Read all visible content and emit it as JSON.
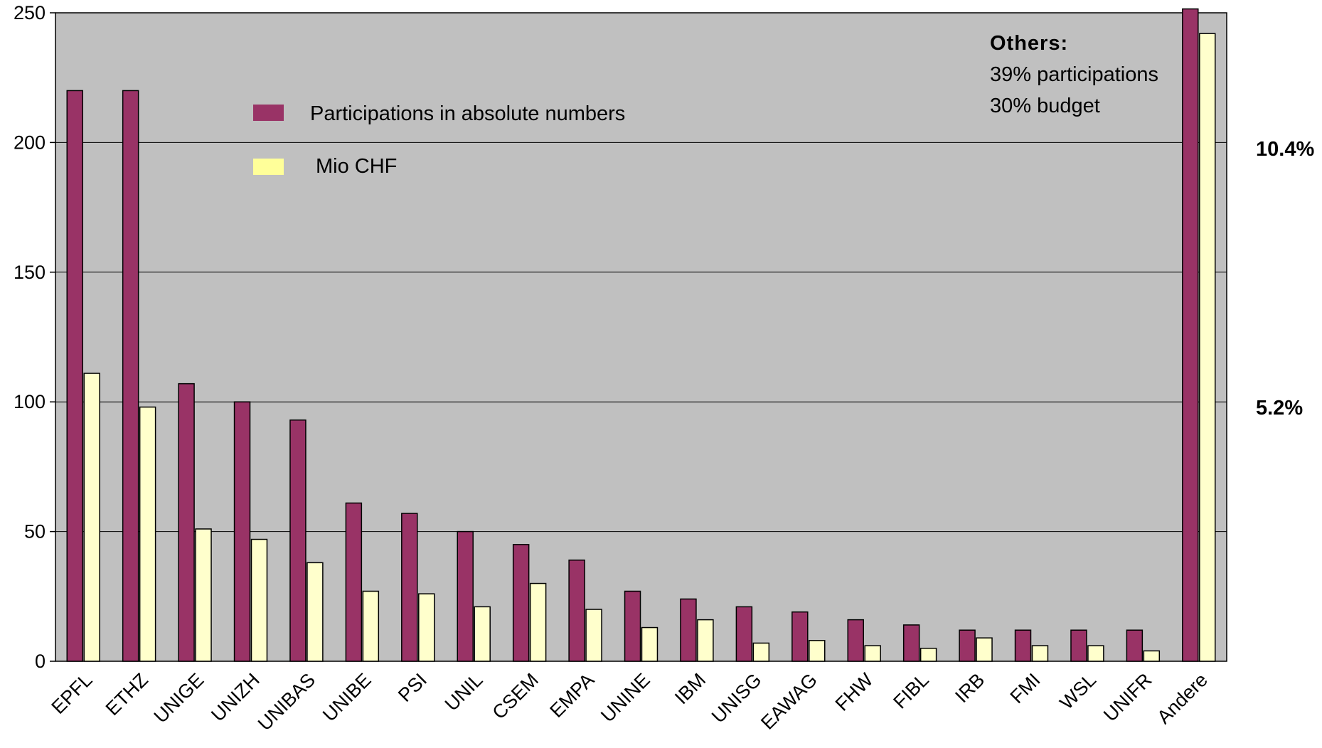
{
  "chart_data": {
    "type": "bar",
    "categories": [
      "EPFL",
      "ETHZ",
      "UNIGE",
      "UNIZH",
      "UNIBAS",
      "UNIBE",
      "PSI",
      "UNIL",
      "CSEM",
      "EMPA",
      "UNINE",
      "IBM",
      "UNISG",
      "EAWAG",
      "FHW",
      "FIBL",
      "IRB",
      "FMI",
      "WSL",
      "UNIFR",
      "Andere"
    ],
    "series": [
      {
        "name": "Participations in absolute numbers",
        "values": [
          220,
          220,
          107,
          100,
          93,
          61,
          57,
          50,
          45,
          39,
          27,
          24,
          21,
          19,
          16,
          14,
          12,
          12,
          12,
          12,
          252
        ]
      },
      {
        "name": "Mio CHF",
        "values": [
          111,
          98,
          51,
          47,
          38,
          27,
          26,
          21,
          30,
          20,
          13,
          16,
          7,
          8,
          6,
          5,
          9,
          6,
          6,
          4,
          242
        ]
      }
    ],
    "colors": {
      "series_0": "#993366",
      "series_1": "#ffffcc",
      "plot_bg": "#c0c0c0"
    },
    "ylim": [
      0,
      250
    ],
    "yticks": [
      0,
      50,
      100,
      150,
      200,
      250
    ],
    "grid": true,
    "legend_position": "top-left"
  },
  "annotations": {
    "others_title": "Others:",
    "others_line1": "39% participations",
    "others_line2": "30% budget",
    "right_pct_upper": "10.4%",
    "right_pct_lower": "5.2%"
  }
}
